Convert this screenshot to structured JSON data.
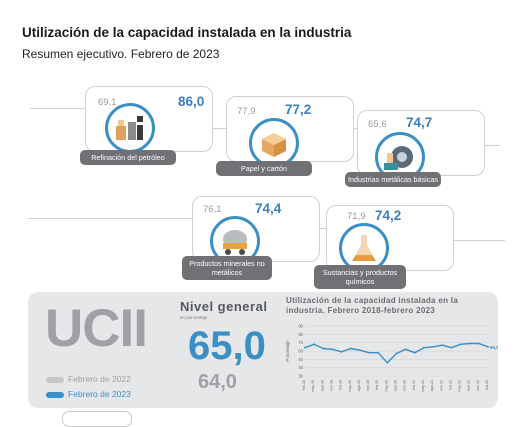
{
  "header": {
    "title": "Utilización de la capacidad instalada en la industria",
    "subtitle": "Resumen ejecutivo. Febrero de 2023"
  },
  "sectors": [
    {
      "name": "Refinación del petróleo",
      "prev": "69,1",
      "current": "86,0",
      "icon": "oil-refinery-icon"
    },
    {
      "name": "Papel y cartón",
      "prev": "77,9",
      "current": "77,2",
      "icon": "paper-box-icon"
    },
    {
      "name": "Industrias metálicas básicas",
      "prev": "65,6",
      "current": "74,7",
      "icon": "metal-coil-icon"
    },
    {
      "name": "Productos minerales no metálicos",
      "prev": "76,1",
      "current": "74,4",
      "icon": "cement-mixer-icon"
    },
    {
      "name": "Sustancias y productos químicos",
      "prev": "71,9",
      "current": "74,2",
      "icon": "flask-icon"
    }
  ],
  "summary": {
    "acronym": "UCII",
    "legend_prev": "Febrero de 2022",
    "legend_current": "Febrero de 2023",
    "nivel_title": "Nivel general",
    "nivel_sub": "en porcentaje",
    "nivel_current": "65,0",
    "nivel_prev": "64,0"
  },
  "colors": {
    "accent": "#3b8fc4",
    "grey": "#9fa1a4",
    "panel": "#e6e7e9"
  },
  "chart_data": {
    "type": "line",
    "title": "Utilización de la capacidad instalada en la industria. Febrero 2018-febrero 2023",
    "ylabel": "Porcentaje",
    "ylim": [
      30,
      90
    ],
    "last_label": "65,0",
    "x": [
      "feb-18",
      "may-18",
      "ago-18",
      "nov-18",
      "feb-19",
      "may-19",
      "ago-19",
      "nov-19",
      "feb-20",
      "may-20",
      "ago-20",
      "nov-20",
      "feb-21",
      "may-21",
      "ago-21",
      "nov-21",
      "feb-22",
      "may-22",
      "ago-22",
      "nov-22",
      "feb-23"
    ],
    "series": [
      {
        "values": [
          64,
          68,
          63,
          62,
          59,
          63,
          61,
          58,
          58,
          46,
          57,
          62,
          58,
          64,
          65,
          67,
          64,
          68,
          69,
          69,
          65
        ]
      }
    ]
  }
}
